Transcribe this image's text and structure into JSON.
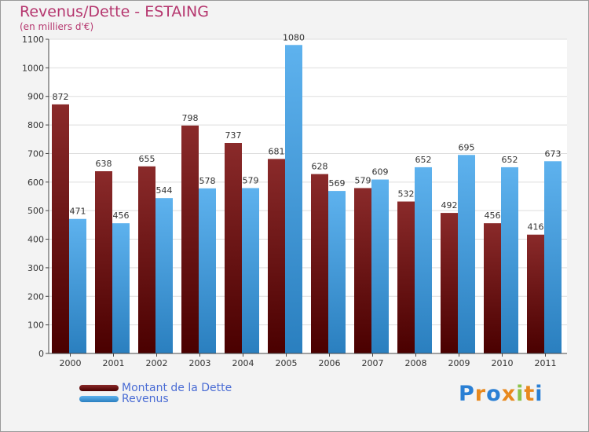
{
  "title": "Revenus/Dette - ESTAING",
  "subtitle": "(en milliers d'€)",
  "logo": {
    "text": "Proxiti",
    "colors": [
      "#2a7fd4",
      "#e8891e",
      "#2a7fd4",
      "#e8891e",
      "#8bc34a",
      "#e8891e",
      "#2a7fd4"
    ]
  },
  "chart_data": {
    "type": "bar",
    "categories": [
      "2000",
      "2001",
      "2002",
      "2003",
      "2004",
      "2005",
      "2006",
      "2007",
      "2008",
      "2009",
      "2010",
      "2011"
    ],
    "series": [
      {
        "name": "Montant de la Dette",
        "color": "#7a1c1c",
        "values": [
          872,
          638,
          655,
          798,
          737,
          681,
          628,
          579,
          532,
          492,
          456,
          416
        ]
      },
      {
        "name": "Revenus",
        "color": "#4aa3e6",
        "values": [
          471,
          456,
          544,
          578,
          579,
          1080,
          569,
          609,
          652,
          695,
          652,
          673
        ]
      }
    ],
    "ylim": [
      0,
      1100
    ],
    "yticks": [
      0,
      100,
      200,
      300,
      400,
      500,
      600,
      700,
      800,
      900,
      1000,
      1100
    ],
    "grid": true,
    "legend": "bottom-left"
  }
}
